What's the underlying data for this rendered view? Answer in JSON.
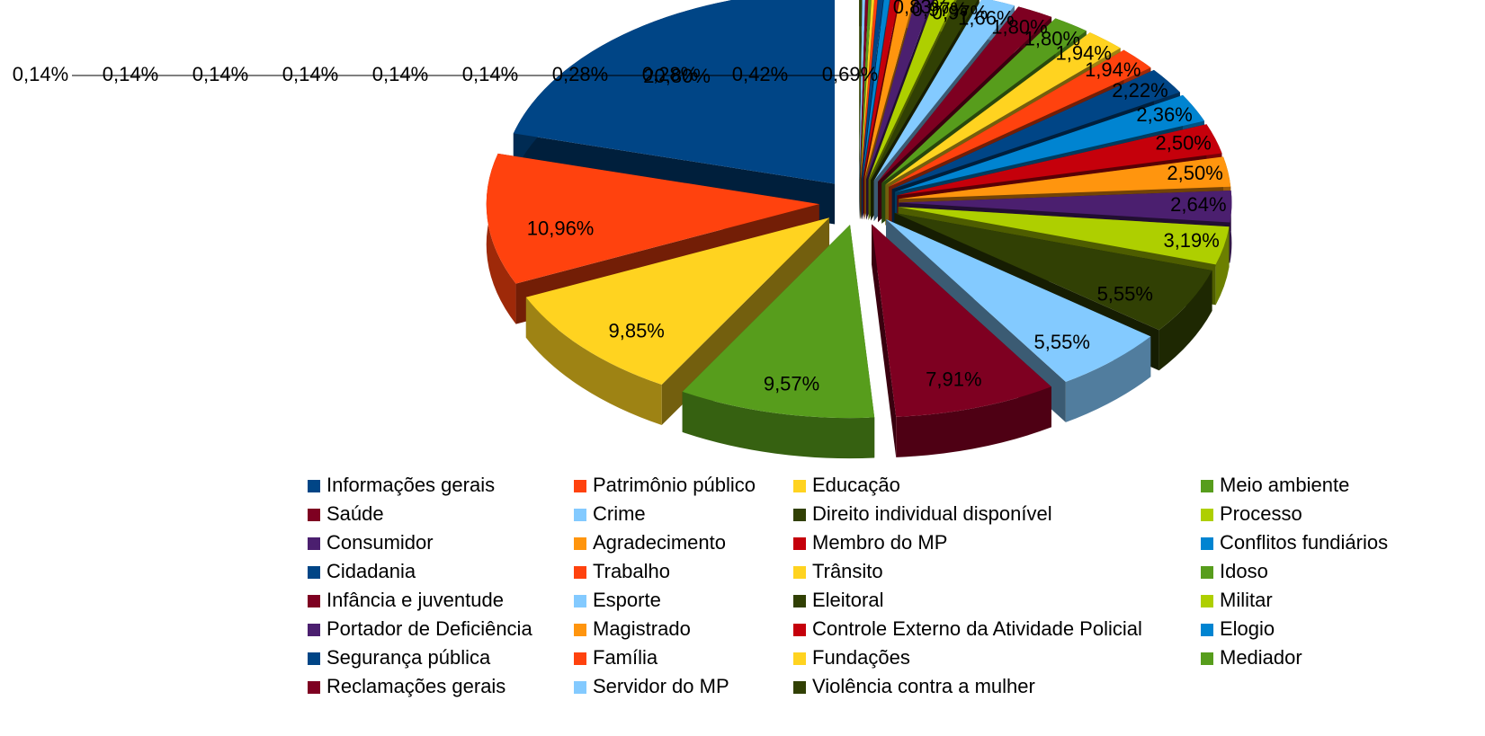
{
  "chart_data": {
    "type": "pie",
    "categories": [
      "Informações gerais",
      "Patrimônio público",
      "Educação",
      "Meio ambiente",
      "Saúde",
      "Crime",
      "Direito individual disponível",
      "Processo",
      "Consumidor",
      "Agradecimento",
      "Membro do MP",
      "Conflitos fundiários",
      "Cidadania",
      "Trabalho",
      "Trânsito",
      "Idoso",
      "Infância e juventude",
      "Esporte",
      "Eleitoral",
      "Militar",
      "Portador de Deficiência",
      "Magistrado",
      "Controle Externo da Atividade Policial",
      "Elogio",
      "Segurança pública",
      "Família",
      "Fundações",
      "Mediador",
      "Reclamações gerais",
      "Servidor do MP",
      "Violência contra a mulher"
    ],
    "values": [
      20.8,
      10.96,
      9.85,
      9.57,
      7.91,
      5.55,
      5.55,
      3.19,
      2.64,
      2.5,
      2.5,
      2.36,
      2.22,
      1.94,
      1.94,
      1.8,
      1.8,
      1.66,
      0.97,
      0.97,
      0.83,
      0.69,
      0.42,
      0.28,
      0.28,
      0.14,
      0.14,
      0.14,
      0.14,
      0.14,
      0.14
    ],
    "value_labels": [
      "20,80%",
      "10,96%",
      "9,85%",
      "9,57%",
      "7,91%",
      "5,55%",
      "5,55%",
      "3,19%",
      "2,64%",
      "2,50%",
      "2,50%",
      "2,36%",
      "2,22%",
      "1,94%",
      "1,94%",
      "1,80%",
      "1,80%",
      "1,66%",
      "0,97%",
      "0,97%",
      "0,83%",
      "0,69%",
      "0,42%",
      "0,28%",
      "0,28%",
      "0,14%",
      "0,14%",
      "0,14%",
      "0,14%",
      "0,14%",
      "0,14%"
    ],
    "colors": [
      "#004586",
      "#ff420e",
      "#ffd320",
      "#579d1c",
      "#7e0021",
      "#83caff",
      "#314004",
      "#aecf00",
      "#4b1f6f",
      "#ff950e",
      "#c5000b",
      "#0084d1"
    ],
    "legend": "bottom"
  }
}
